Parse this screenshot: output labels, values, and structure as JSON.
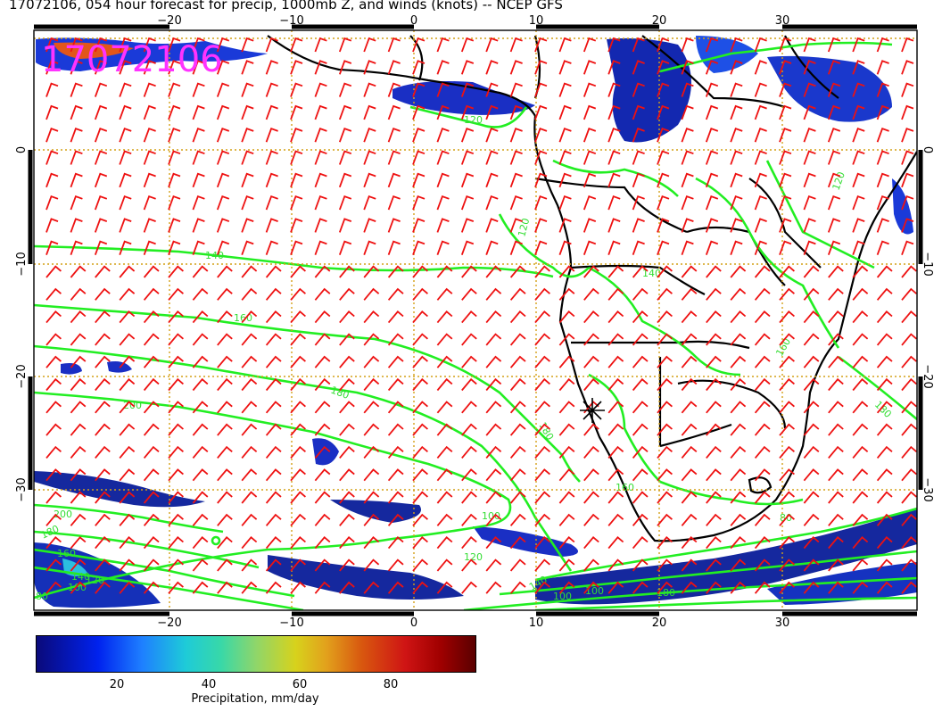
{
  "title": "17072106, 054 hour forecast for precip, 1000mb Z, and winds (knots) -- NCEP GFS",
  "stamp": "17072106",
  "map": {
    "lon_ticks_top": [
      "−20",
      "−10",
      "0",
      "10",
      "20",
      "30"
    ],
    "lon_ticks_bottom": [
      "−20",
      "−10",
      "0",
      "10",
      "20",
      "30"
    ],
    "lat_ticks_left": [
      "0",
      "−10",
      "−20",
      "−30"
    ],
    "lat_ticks_right": [
      "0",
      "−10",
      "−20",
      "−30"
    ],
    "contour_labels": [
      "120",
      "120",
      "140",
      "160",
      "180",
      "200",
      "200",
      "180",
      "160",
      "140",
      "120",
      "100",
      "80",
      "180",
      "100",
      "120",
      "140",
      "160",
      "100",
      "180",
      "160",
      "120",
      "140",
      "180",
      "100",
      "80"
    ],
    "colors": {
      "contours": "#22ee22",
      "barbs": "#ee1111",
      "gridlines": "#d4a017",
      "stamp": "#ff33ff",
      "coast": "#000000"
    }
  },
  "colorbar": {
    "ticks": [
      "20",
      "40",
      "60",
      "80"
    ],
    "label": "Precipitation, mm/day"
  }
}
